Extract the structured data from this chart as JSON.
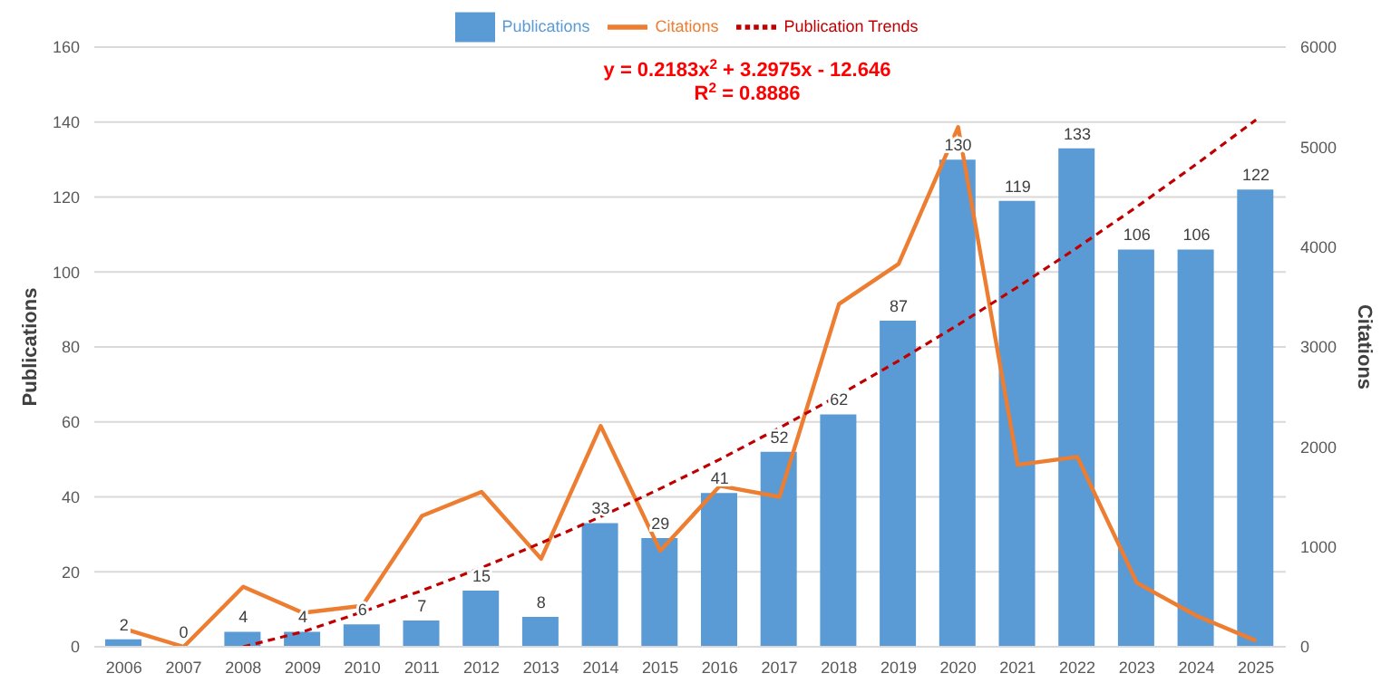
{
  "chart_data": {
    "type": "bar",
    "categories": [
      "2006",
      "2007",
      "2008",
      "2009",
      "2010",
      "2011",
      "2012",
      "2013",
      "2014",
      "2015",
      "2016",
      "2017",
      "2018",
      "2019",
      "2020",
      "2021",
      "2022",
      "2023",
      "2024",
      "2025"
    ],
    "series": [
      {
        "name": "Publications",
        "color": "#5b9bd5",
        "values": [
          2,
          0,
          4,
          4,
          6,
          7,
          15,
          8,
          33,
          29,
          41,
          52,
          62,
          87,
          130,
          119,
          133,
          106,
          106,
          122
        ],
        "value_labels": [
          "2",
          "0",
          "4",
          "4",
          "6",
          "7",
          "15",
          "8",
          "33",
          "29",
          "41",
          "52",
          "62",
          "87",
          "130",
          "119",
          "133",
          "106",
          "106",
          "122"
        ]
      },
      {
        "name": "Citations",
        "type": "line",
        "axis": "y2",
        "color": "#ed7d31",
        "values": [
          180,
          0,
          600,
          340,
          410,
          1310,
          1550,
          880,
          2210,
          960,
          1610,
          1500,
          3430,
          3830,
          5200,
          1820,
          1900,
          640,
          310,
          60
        ]
      },
      {
        "name": "Publication Trends",
        "type": "line",
        "color": "#c00000",
        "line_style": "dashed",
        "values": [
          null,
          null,
          0,
          4.0,
          9.3,
          15.0,
          21.1,
          27.7,
          34.7,
          42.2,
          50.0,
          58.4,
          67.1,
          76.3,
          85.9,
          96.0,
          106.5,
          117.4,
          128.8,
          140.6
        ]
      }
    ],
    "ylabel": "Publications",
    "y2label": "Citations",
    "ylim": [
      0,
      160
    ],
    "yticks": [
      0,
      20,
      40,
      60,
      80,
      100,
      120,
      140,
      160
    ],
    "y2lim": [
      0,
      6000
    ],
    "y2ticks": [
      0,
      1000,
      2000,
      3000,
      4000,
      5000,
      6000
    ],
    "annotations": [
      "y = 0.2183x$^{2}$ + 3.2975x - 12.646",
      "R$^{2}$ = 0.8886"
    ],
    "grid": "y",
    "legend": "top",
    "marker": "none"
  }
}
